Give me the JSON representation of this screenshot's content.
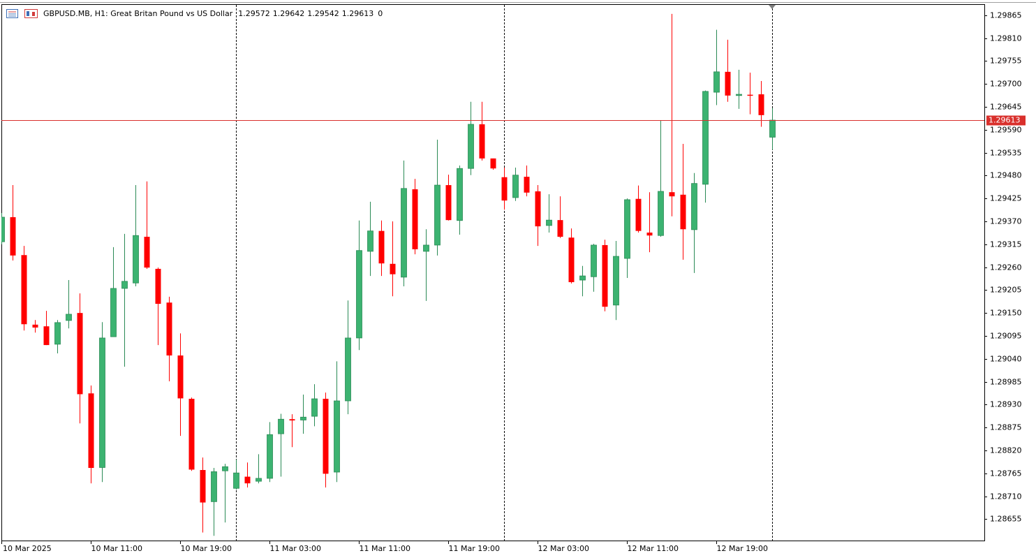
{
  "chart_data": {
    "type": "candlestick",
    "title": "GBPUSD.MB, H1:  Great Britan Pound vs US Dollar",
    "spread": 0,
    "up_color": "#3cb371",
    "down_color": "#ff0000",
    "price_line_color": "#d9302c",
    "categories": [
      "10 Mar 2025",
      null,
      null,
      null,
      null,
      null,
      null,
      null,
      "10 Mar 11:00",
      null,
      null,
      null,
      null,
      null,
      null,
      null,
      "10 Mar 19:00",
      null,
      null,
      null,
      null,
      null,
      null,
      null,
      "11 Mar 03:00",
      null,
      null,
      null,
      null,
      null,
      null,
      null,
      "11 Mar 11:00",
      null,
      null,
      null,
      null,
      null,
      null,
      null,
      "11 Mar 19:00",
      null,
      null,
      null,
      null,
      null,
      null,
      null,
      "12 Mar 03:00",
      null,
      null,
      null,
      null,
      null,
      null,
      null,
      "12 Mar 11:00",
      null,
      null,
      null,
      null,
      null,
      null,
      null,
      "12 Mar 19:00",
      null,
      null,
      null,
      null,
      null
    ],
    "open": [
      1.29321,
      1.2938,
      1.29289,
      1.29122,
      1.29118,
      1.29075,
      1.29132,
      1.2915,
      1.28957,
      1.28779,
      1.29093,
      1.29209,
      1.29222,
      1.29333,
      1.29256,
      1.29175,
      1.29048,
      1.28944,
      1.28773,
      1.28697,
      1.28771,
      1.28729,
      1.28757,
      1.28746,
      1.28753,
      1.2886,
      1.28895,
      1.28893,
      1.28902,
      1.28944,
      1.28768,
      1.28939,
      1.2909,
      1.29298,
      1.29347,
      1.29268,
      1.29236,
      1.29447,
      1.29298,
      1.29313,
      1.29457,
      1.29372,
      1.29497,
      1.29603,
      1.29521,
      1.29476,
      1.29427,
      1.29477,
      1.29442,
      1.2936,
      1.29373,
      1.29331,
      1.29229,
      1.29237,
      1.29313,
      1.29169,
      1.29281,
      1.29424,
      1.29343,
      1.29336,
      1.2944,
      1.29434,
      1.2935,
      1.29459,
      1.2968,
      1.29729,
      1.29672,
      1.29674,
      1.29675,
      1.29572
    ],
    "high": [
      1.2939,
      1.29457,
      1.29311,
      1.29133,
      1.29155,
      1.29133,
      1.29229,
      1.29197,
      1.28976,
      1.29128,
      1.29308,
      1.2934,
      1.29457,
      1.29466,
      1.29259,
      1.29189,
      1.29101,
      1.28947,
      1.28803,
      1.28778,
      1.28788,
      1.28798,
      1.28791,
      1.28811,
      1.28888,
      1.28908,
      1.28907,
      1.28954,
      1.28979,
      1.28959,
      1.29034,
      1.2918,
      1.29372,
      1.29417,
      1.29372,
      1.2937,
      1.29516,
      1.29472,
      1.29351,
      1.29566,
      1.29482,
      1.29504,
      1.29657,
      1.29657,
      1.29521,
      1.29499,
      1.29499,
      1.29504,
      1.29457,
      1.29435,
      1.2943,
      1.29353,
      1.29263,
      1.29316,
      1.29326,
      1.29323,
      1.29425,
      1.29456,
      1.2944,
      1.29613,
      1.29868,
      1.29556,
      1.29486,
      1.29684,
      1.2983,
      1.29806,
      1.29734,
      1.29727,
      1.29707,
      1.29642
    ],
    "low": [
      1.29315,
      1.29276,
      1.29108,
      1.29103,
      1.29073,
      1.29053,
      1.29113,
      1.28885,
      1.28741,
      1.28744,
      1.29093,
      1.29021,
      1.29214,
      1.29256,
      1.29073,
      1.28986,
      1.28855,
      1.28771,
      1.28623,
      1.28615,
      1.28647,
      1.28726,
      1.28731,
      1.28741,
      1.28744,
      1.28757,
      1.28828,
      1.2886,
      1.28878,
      1.28731,
      1.28744,
      1.28907,
      1.29061,
      1.29239,
      1.29239,
      1.2919,
      1.29214,
      1.29291,
      1.29179,
      1.29288,
      1.29372,
      1.29338,
      1.29481,
      1.29516,
      1.29494,
      1.29398,
      1.29419,
      1.2943,
      1.29311,
      1.29343,
      1.2933,
      1.29221,
      1.2919,
      1.29201,
      1.29154,
      1.29133,
      1.29234,
      1.29343,
      1.29296,
      1.29333,
      1.29382,
      1.29278,
      1.29246,
      1.29415,
      1.29649,
      1.29657,
      1.2964,
      1.29627,
      1.29597,
      1.29542
    ],
    "close": [
      1.2938,
      1.29288,
      1.29123,
      1.29115,
      1.29073,
      1.29127,
      1.29147,
      1.28955,
      1.28778,
      1.2909,
      1.29209,
      1.29226,
      1.29336,
      1.29259,
      1.29172,
      1.29048,
      1.28945,
      1.28774,
      1.28695,
      1.28769,
      1.28781,
      1.28766,
      1.28741,
      1.28753,
      1.28858,
      1.28895,
      1.28892,
      1.289,
      1.28944,
      1.28764,
      1.28939,
      1.2909,
      1.293,
      1.29347,
      1.29269,
      1.29243,
      1.29449,
      1.29303,
      1.29313,
      1.29457,
      1.29373,
      1.29497,
      1.29603,
      1.29521,
      1.29497,
      1.2942,
      1.29481,
      1.29439,
      1.29358,
      1.29373,
      1.29333,
      1.29224,
      1.29239,
      1.29313,
      1.29165,
      1.29286,
      1.29422,
      1.29347,
      1.29336,
      1.29442,
      1.2943,
      1.29351,
      1.29461,
      1.29682,
      1.29729,
      1.29672,
      1.29675,
      1.29672,
      1.29625,
      1.29613
    ],
    "ylim": [
      1.28602,
      1.29888
    ],
    "yticks": [
      1.29865,
      {
        "value": 1.2981,
        "label": "1.29810"
      },
      1.29755,
      {
        "value": 1.297,
        "label": "1.29700"
      },
      1.29645,
      {
        "value": 1.2959,
        "label": "1.29590"
      },
      1.29535,
      {
        "value": 1.2948,
        "label": "1.29480"
      },
      1.29425,
      {
        "value": 1.2937,
        "label": "1.29370"
      },
      1.29315,
      {
        "value": 1.2926,
        "label": "1.29260"
      },
      1.29205,
      {
        "value": 1.2915,
        "label": "1.29150"
      },
      1.29095,
      {
        "value": 1.2904,
        "label": "1.29040"
      },
      1.28985,
      {
        "value": 1.2893,
        "label": "1.28930"
      },
      1.28875,
      {
        "value": 1.2882,
        "label": "1.28820"
      },
      1.28765,
      {
        "value": 1.2871,
        "label": "1.28710"
      },
      1.28655
    ]
  }
}
